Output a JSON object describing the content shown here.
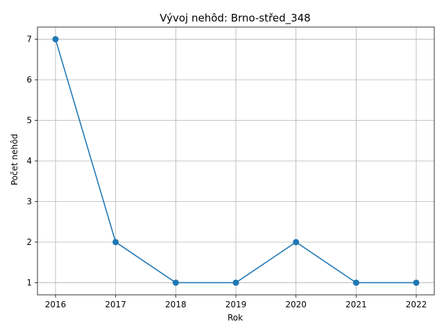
{
  "chart_data": {
    "type": "line",
    "title": "Vývoj nehôd: Brno-střed_348",
    "xlabel": "Rok",
    "ylabel": "Počet nehôd",
    "x": [
      2016,
      2017,
      2018,
      2019,
      2020,
      2021,
      2022
    ],
    "series": [
      {
        "values": [
          7,
          2,
          1,
          1,
          2,
          1,
          1
        ]
      }
    ],
    "xticks": [
      "2016",
      "2017",
      "2018",
      "2019",
      "2020",
      "2021",
      "2022"
    ],
    "yticks": [
      "1",
      "2",
      "3",
      "4",
      "5",
      "6",
      "7"
    ],
    "xlim": [
      2015.7,
      2022.3
    ],
    "ylim": [
      0.7,
      7.3
    ],
    "grid": true,
    "marker": "circle",
    "color": "#1f77b4"
  }
}
